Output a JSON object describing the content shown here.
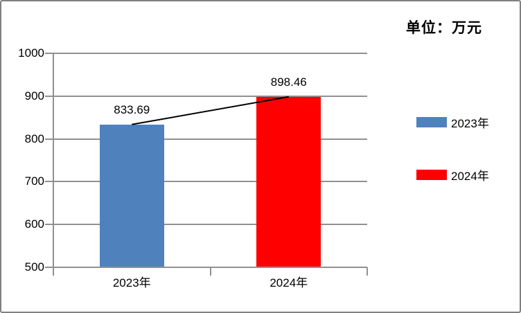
{
  "unit_title": "单位：万元",
  "legend": {
    "items": [
      {
        "label": "2023年",
        "color": "#4F81BD"
      },
      {
        "label": "2024年",
        "color": "#FF0000"
      }
    ]
  },
  "chart_data": {
    "type": "bar",
    "title": "单位：万元",
    "categories": [
      "2023年",
      "2024年"
    ],
    "values": [
      833.69,
      898.46
    ],
    "data_labels": [
      "833.69",
      "898.46"
    ],
    "bar_colors": [
      "#4F81BD",
      "#FF0000"
    ],
    "ylim": [
      500,
      1000
    ],
    "y_ticks": [
      500,
      600,
      700,
      800,
      900,
      1000
    ],
    "grid": true,
    "legend_position": "right",
    "legend_entries": [
      "2023年",
      "2024年"
    ],
    "connector_line": {
      "from_index": 0,
      "to_index": 1,
      "color": "#000000"
    },
    "colors": {
      "axis": "#909090",
      "gridline": "#909090",
      "frame_border": "#808080",
      "text": "#000000"
    }
  }
}
